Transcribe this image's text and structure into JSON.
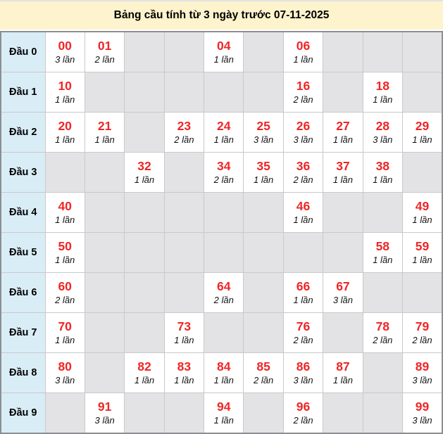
{
  "title": "Bảng cầu tính từ 3 ngày trước 07-11-2025",
  "colors": {
    "title_bg": "#fdf3cd",
    "top_strip": "#e1e1e6",
    "label_bg": "#d9edf7",
    "filled_bg": "#ffffff",
    "empty_bg": "#e3e3e5",
    "number_red": "#f02525",
    "count_text": "#111111",
    "grid_line": "#c9c9c9",
    "outer_border": "#8a8f94"
  },
  "table": {
    "rows": [
      {
        "label": "Đầu 0",
        "cells": [
          {
            "num": "00",
            "count": "3 lần"
          },
          {
            "num": "01",
            "count": "2 lần"
          },
          null,
          null,
          {
            "num": "04",
            "count": "1 lần"
          },
          null,
          {
            "num": "06",
            "count": "1 lần"
          },
          null,
          null,
          null
        ]
      },
      {
        "label": "Đầu 1",
        "cells": [
          {
            "num": "10",
            "count": "1 lần"
          },
          null,
          null,
          null,
          null,
          null,
          {
            "num": "16",
            "count": "2 lần"
          },
          null,
          {
            "num": "18",
            "count": "1 lần"
          },
          null
        ]
      },
      {
        "label": "Đầu 2",
        "cells": [
          {
            "num": "20",
            "count": "1 lần"
          },
          {
            "num": "21",
            "count": "1 lần"
          },
          null,
          {
            "num": "23",
            "count": "2 lần"
          },
          {
            "num": "24",
            "count": "1 lần"
          },
          {
            "num": "25",
            "count": "3 lần"
          },
          {
            "num": "26",
            "count": "3 lần"
          },
          {
            "num": "27",
            "count": "1 lần"
          },
          {
            "num": "28",
            "count": "3 lần"
          },
          {
            "num": "29",
            "count": "1 lần"
          }
        ]
      },
      {
        "label": "Đầu 3",
        "cells": [
          null,
          null,
          {
            "num": "32",
            "count": "1 lần"
          },
          null,
          {
            "num": "34",
            "count": "2 lần"
          },
          {
            "num": "35",
            "count": "1 lần"
          },
          {
            "num": "36",
            "count": "2 lần"
          },
          {
            "num": "37",
            "count": "1 lần"
          },
          {
            "num": "38",
            "count": "1 lần"
          },
          null
        ]
      },
      {
        "label": "Đầu 4",
        "cells": [
          {
            "num": "40",
            "count": "1 lần"
          },
          null,
          null,
          null,
          null,
          null,
          {
            "num": "46",
            "count": "1 lần"
          },
          null,
          null,
          {
            "num": "49",
            "count": "1 lần"
          }
        ]
      },
      {
        "label": "Đầu 5",
        "cells": [
          {
            "num": "50",
            "count": "1 lần"
          },
          null,
          null,
          null,
          null,
          null,
          null,
          null,
          {
            "num": "58",
            "count": "1 lần"
          },
          {
            "num": "59",
            "count": "1 lần"
          }
        ]
      },
      {
        "label": "Đầu 6",
        "cells": [
          {
            "num": "60",
            "count": "2 lần"
          },
          null,
          null,
          null,
          {
            "num": "64",
            "count": "2 lần"
          },
          null,
          {
            "num": "66",
            "count": "1 lần"
          },
          {
            "num": "67",
            "count": "3 lần"
          },
          null,
          null
        ]
      },
      {
        "label": "Đầu 7",
        "cells": [
          {
            "num": "70",
            "count": "1 lần"
          },
          null,
          null,
          {
            "num": "73",
            "count": "1 lần"
          },
          null,
          null,
          {
            "num": "76",
            "count": "2 lần"
          },
          null,
          {
            "num": "78",
            "count": "2 lần"
          },
          {
            "num": "79",
            "count": "2 lần"
          }
        ]
      },
      {
        "label": "Đầu 8",
        "cells": [
          {
            "num": "80",
            "count": "3 lần"
          },
          null,
          {
            "num": "82",
            "count": "1 lần"
          },
          {
            "num": "83",
            "count": "1 lần"
          },
          {
            "num": "84",
            "count": "1 lần"
          },
          {
            "num": "85",
            "count": "2 lần"
          },
          {
            "num": "86",
            "count": "3 lần"
          },
          {
            "num": "87",
            "count": "1 lần"
          },
          null,
          {
            "num": "89",
            "count": "3 lần"
          }
        ]
      },
      {
        "label": "Đầu 9",
        "cells": [
          null,
          {
            "num": "91",
            "count": "3 lần"
          },
          null,
          null,
          {
            "num": "94",
            "count": "1 lần"
          },
          null,
          {
            "num": "96",
            "count": "2 lần"
          },
          null,
          null,
          {
            "num": "99",
            "count": "3 lần"
          }
        ]
      }
    ]
  },
  "chart_data": {
    "type": "table",
    "title": "Bảng cầu tính từ 3 ngày trước 07-11-2025",
    "row_labels": [
      "Đầu 0",
      "Đầu 1",
      "Đầu 2",
      "Đầu 3",
      "Đầu 4",
      "Đầu 5",
      "Đầu 6",
      "Đầu 7",
      "Đầu 8",
      "Đầu 9"
    ],
    "column_units": [
      0,
      1,
      2,
      3,
      4,
      5,
      6,
      7,
      8,
      9
    ],
    "entries": [
      {
        "number": "00",
        "count": 3
      },
      {
        "number": "01",
        "count": 2
      },
      {
        "number": "04",
        "count": 1
      },
      {
        "number": "06",
        "count": 1
      },
      {
        "number": "10",
        "count": 1
      },
      {
        "number": "16",
        "count": 2
      },
      {
        "number": "18",
        "count": 1
      },
      {
        "number": "20",
        "count": 1
      },
      {
        "number": "21",
        "count": 1
      },
      {
        "number": "23",
        "count": 2
      },
      {
        "number": "24",
        "count": 1
      },
      {
        "number": "25",
        "count": 3
      },
      {
        "number": "26",
        "count": 3
      },
      {
        "number": "27",
        "count": 1
      },
      {
        "number": "28",
        "count": 3
      },
      {
        "number": "29",
        "count": 1
      },
      {
        "number": "32",
        "count": 1
      },
      {
        "number": "34",
        "count": 2
      },
      {
        "number": "35",
        "count": 1
      },
      {
        "number": "36",
        "count": 2
      },
      {
        "number": "37",
        "count": 1
      },
      {
        "number": "38",
        "count": 1
      },
      {
        "number": "40",
        "count": 1
      },
      {
        "number": "46",
        "count": 1
      },
      {
        "number": "49",
        "count": 1
      },
      {
        "number": "50",
        "count": 1
      },
      {
        "number": "58",
        "count": 1
      },
      {
        "number": "59",
        "count": 1
      },
      {
        "number": "60",
        "count": 2
      },
      {
        "number": "64",
        "count": 2
      },
      {
        "number": "66",
        "count": 1
      },
      {
        "number": "67",
        "count": 3
      },
      {
        "number": "70",
        "count": 1
      },
      {
        "number": "73",
        "count": 1
      },
      {
        "number": "76",
        "count": 2
      },
      {
        "number": "78",
        "count": 2
      },
      {
        "number": "79",
        "count": 2
      },
      {
        "number": "80",
        "count": 3
      },
      {
        "number": "82",
        "count": 1
      },
      {
        "number": "83",
        "count": 1
      },
      {
        "number": "84",
        "count": 1
      },
      {
        "number": "85",
        "count": 2
      },
      {
        "number": "86",
        "count": 3
      },
      {
        "number": "87",
        "count": 1
      },
      {
        "number": "89",
        "count": 3
      },
      {
        "number": "91",
        "count": 3
      },
      {
        "number": "94",
        "count": 1
      },
      {
        "number": "96",
        "count": 2
      },
      {
        "number": "99",
        "count": 3
      }
    ]
  }
}
